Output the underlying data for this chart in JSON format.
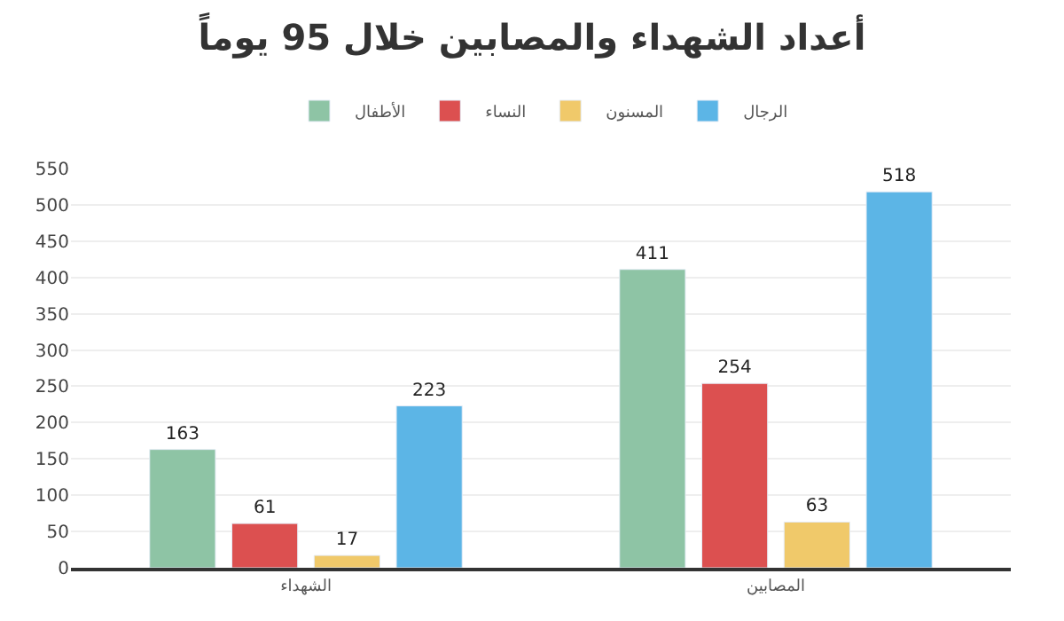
{
  "chart_data": {
    "type": "bar",
    "title": "أعداد الشهداء والمصابين خلال 95 يوماً",
    "categories": [
      "الشهداء",
      "المصابين"
    ],
    "series": [
      {
        "name": "الأطفال",
        "color": "#8ec4a5",
        "values": [
          163,
          411
        ]
      },
      {
        "name": "النساء",
        "color": "#dc5050",
        "values": [
          61,
          254
        ]
      },
      {
        "name": "المسنون",
        "color": "#f0c96a",
        "values": [
          17,
          63
        ]
      },
      {
        "name": "الرجال",
        "color": "#5cb5e6",
        "values": [
          223,
          518
        ]
      }
    ],
    "ylim": [
      0,
      550
    ],
    "yticks": [
      0,
      50,
      100,
      150,
      200,
      250,
      300,
      350,
      400,
      450,
      500,
      550
    ],
    "grid": "y",
    "legend": "top",
    "data_labels": true
  }
}
